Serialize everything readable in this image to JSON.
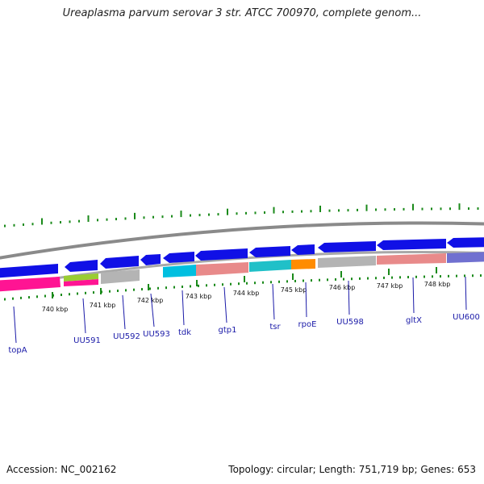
{
  "title": "Ureaplasma parvum serovar 3 str. ATCC 700970, complete genom...",
  "footer": {
    "accession": "Accession: NC_002162",
    "summary": "Topology: circular; Length: 751,719 bp; Genes: 653"
  },
  "colors": {
    "backbone": "#8a8a8a",
    "forward_gene": "#1010e6",
    "gc_tick": "#1a8a1a",
    "label_text": "#1a1aa8"
  },
  "scale_ticks": [
    "740 kbp",
    "741 kbp",
    "742 kbp",
    "743 kbp",
    "744 kbp",
    "745 kbp",
    "746 kbp",
    "747 kbp",
    "748 kbp"
  ],
  "genes": [
    {
      "label": "topA"
    },
    {
      "label": "UU591"
    },
    {
      "label": "UU592"
    },
    {
      "label": "UU593"
    },
    {
      "label": "tdk"
    },
    {
      "label": "gtp1"
    },
    {
      "label": "tsr"
    },
    {
      "label": "rpoE"
    },
    {
      "label": "UU598"
    },
    {
      "label": "gltX"
    },
    {
      "label": "UU600"
    }
  ]
}
